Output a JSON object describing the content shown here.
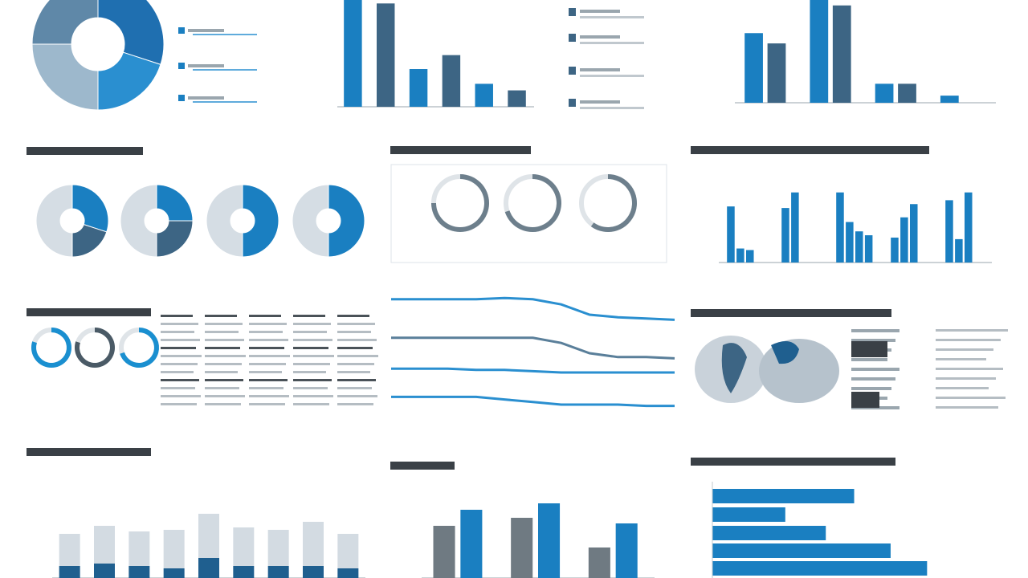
{
  "chart_data": [
    {
      "type": "pie",
      "values": [
        30,
        20,
        25,
        25
      ],
      "colors": [
        "#1f6fb0",
        "#2a8fd0",
        "#9db8cc",
        "#5f88a8"
      ]
    },
    {
      "type": "bar",
      "values": [
        140,
        126,
        46,
        63,
        28,
        20
      ],
      "colors": [
        "#1a7fc1",
        "#3d6584",
        "#1a7fc1",
        "#3d6584",
        "#1a7fc1",
        "#3d6584"
      ],
      "ylim": [
        0,
        140
      ]
    },
    {
      "type": "bar",
      "series": [
        {
          "color": "#1a7fc1",
          "values": [
            88,
            135,
            24,
            9
          ]
        },
        {
          "color": "#3d6584",
          "values": [
            75,
            123,
            24,
            null
          ]
        }
      ],
      "ylim": [
        0,
        140
      ]
    },
    {
      "type": "pie",
      "values": [
        30,
        20,
        50
      ],
      "colors": [
        "#1a7fc1",
        "#3d6584",
        "#d5dde4"
      ]
    },
    {
      "type": "pie",
      "values": [
        25,
        25,
        50
      ],
      "colors": [
        "#1a7fc1",
        "#3d6584",
        "#d5dde4"
      ]
    },
    {
      "type": "pie",
      "values": [
        50,
        50
      ],
      "colors": [
        "#1a7fc1",
        "#d5dde4"
      ]
    },
    {
      "type": "pie",
      "values": [
        50,
        50
      ],
      "colors": [
        "#1a7fc1",
        "#d5dde4"
      ]
    },
    {
      "type": "gauge",
      "value": 75,
      "ylim": [
        0,
        100
      ],
      "color": "#6d7f8c"
    },
    {
      "type": "gauge",
      "value": 70,
      "ylim": [
        0,
        100
      ],
      "color": "#6d7f8c"
    },
    {
      "type": "gauge",
      "value": 60,
      "ylim": [
        0,
        100
      ],
      "color": "#6d7f8c"
    },
    {
      "type": "bar",
      "series": [
        {
          "color": "#1a7fc1",
          "values": [
            72,
            70,
            90,
            32,
            80
          ]
        },
        {
          "color": "#1a7fc1",
          "values": [
            18,
            90,
            52,
            58,
            30
          ]
        },
        {
          "color": "#1a7fc1",
          "values": [
            16,
            null,
            40,
            75,
            90
          ]
        },
        {
          "color": "#1a7fc1",
          "values": [
            null,
            null,
            35,
            null,
            null
          ]
        }
      ],
      "ylim": [
        0,
        100
      ]
    },
    {
      "type": "gauge",
      "value": 80,
      "ylim": [
        0,
        100
      ],
      "color": "#1a8fd0"
    },
    {
      "type": "gauge",
      "value": 80,
      "ylim": [
        0,
        100
      ],
      "color": "#4a5a66"
    },
    {
      "type": "gauge",
      "value": 70,
      "ylim": [
        0,
        100
      ],
      "color": "#1a8fd0"
    },
    {
      "type": "line",
      "x": [
        0,
        1,
        2,
        3,
        4,
        5,
        6,
        7,
        8,
        9,
        10
      ],
      "xlim": [
        0,
        10
      ],
      "ylim": [
        0,
        100
      ],
      "series": [
        {
          "color": "#2a8fd0",
          "values": [
            92,
            92,
            92,
            92,
            93,
            92,
            88,
            80,
            78,
            77,
            76
          ]
        },
        {
          "color": "#5a7f9a",
          "values": [
            62,
            62,
            62,
            62,
            62,
            62,
            58,
            50,
            47,
            47,
            46
          ]
        },
        {
          "color": "#2a8fd0",
          "values": [
            38,
            38,
            38,
            37,
            37,
            36,
            35,
            35,
            35,
            35,
            35
          ]
        },
        {
          "color": "#2a8fd0",
          "values": [
            16,
            16,
            16,
            16,
            14,
            12,
            10,
            10,
            10,
            9,
            9
          ]
        }
      ]
    },
    {
      "type": "bar",
      "stacked": true,
      "ylim": [
        0,
        140
      ],
      "series": [
        {
          "color": "#1f5f8f",
          "values": [
            15,
            18,
            15,
            12,
            25,
            15,
            15,
            15,
            12
          ]
        },
        {
          "color": "#d3dbe2",
          "values": [
            40,
            47,
            43,
            48,
            55,
            48,
            45,
            55,
            43
          ]
        }
      ]
    },
    {
      "type": "bar",
      "ylim": [
        0,
        140
      ],
      "series": [
        {
          "color": "#6f7a82",
          "values": [
            65,
            75,
            38
          ]
        },
        {
          "color": "#1a7fc1",
          "values": [
            85,
            93,
            68
          ]
        }
      ]
    },
    {
      "type": "bar",
      "orientation": "horizontal",
      "xlim": [
        0,
        340
      ],
      "values": [
        175,
        90,
        140,
        220,
        265
      ],
      "color": "#1a7fc1"
    }
  ]
}
